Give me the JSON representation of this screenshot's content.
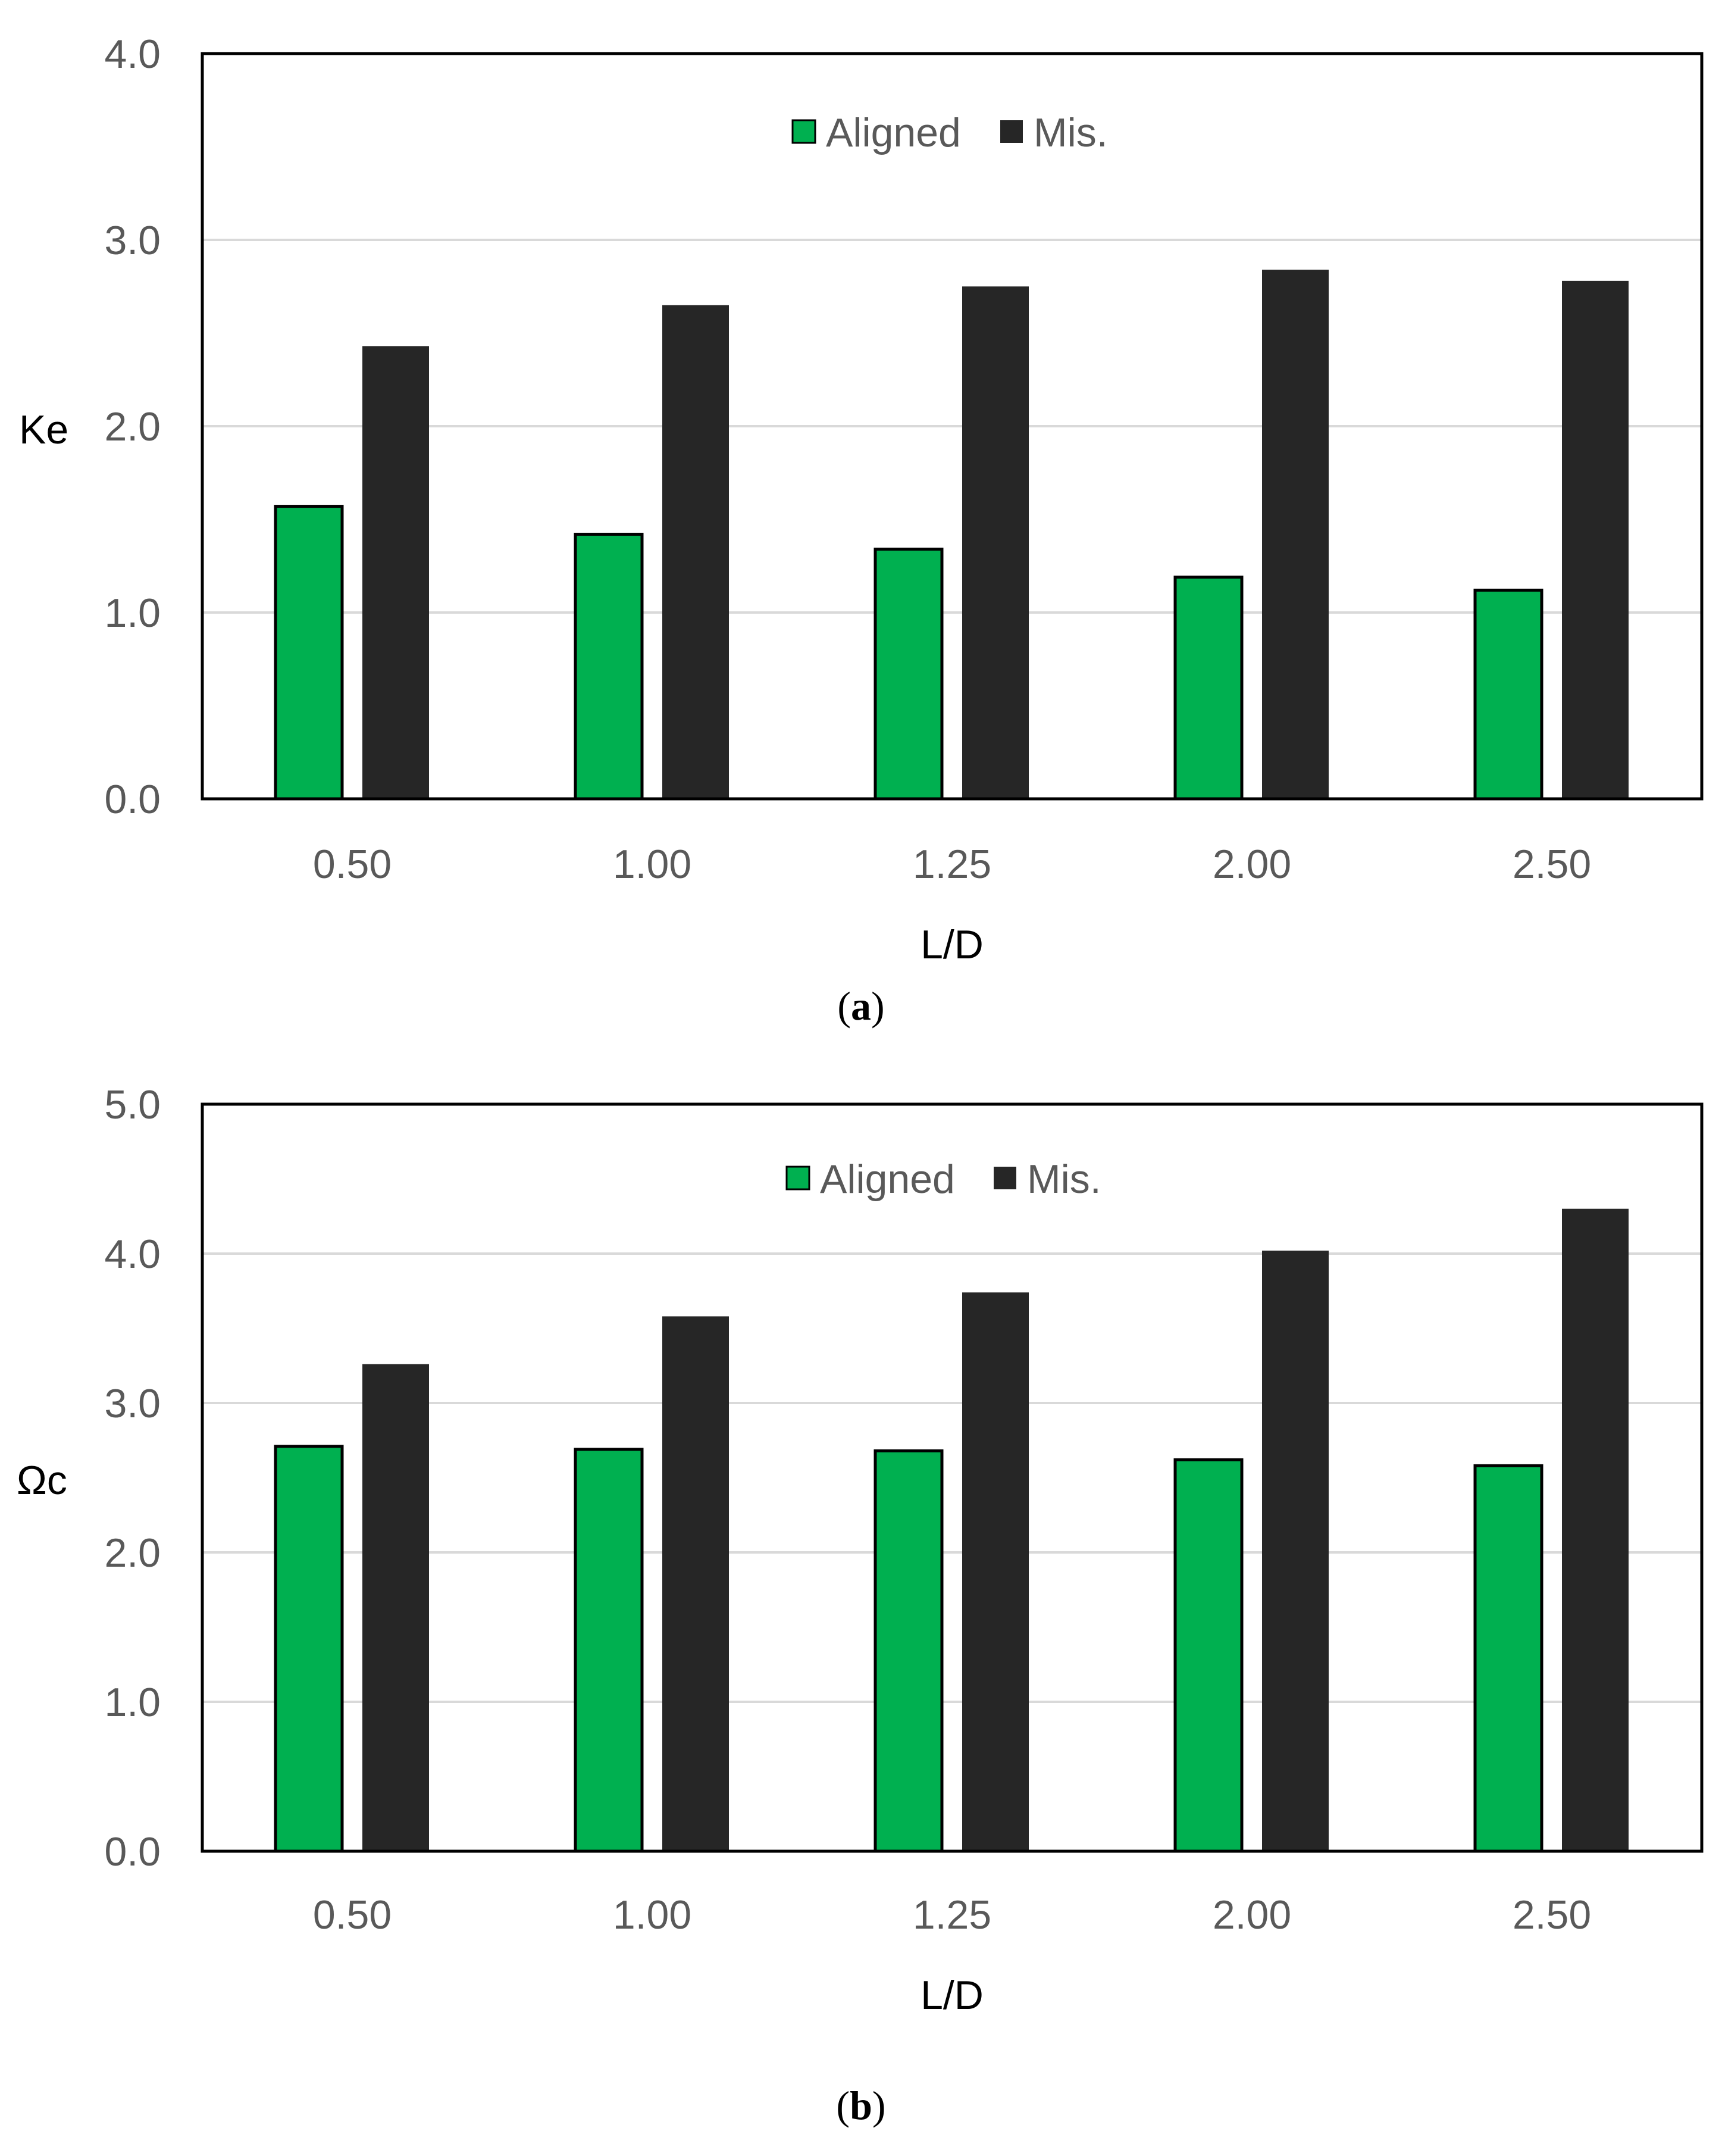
{
  "colors": {
    "aligned": "#00b050",
    "mis": "#262626",
    "grid": "#d9d9d9",
    "axis": "#000000"
  },
  "chart_data": [
    {
      "type": "bar",
      "panel": "a",
      "title": "",
      "xlabel": "L/D",
      "ylabel": "Ke",
      "categories": [
        "0.50",
        "1.00",
        "1.25",
        "2.00",
        "2.50"
      ],
      "series": [
        {
          "name": "Aligned",
          "values": [
            1.57,
            1.42,
            1.34,
            1.19,
            1.12
          ]
        },
        {
          "name": "Mis.",
          "values": [
            2.43,
            2.65,
            2.75,
            2.84,
            2.78
          ]
        }
      ],
      "ylim": [
        0,
        4
      ],
      "yticks": [
        "0.0",
        "1.0",
        "2.0",
        "3.0",
        "4.0"
      ],
      "grid": true,
      "legend": "top-center"
    },
    {
      "type": "bar",
      "panel": "b",
      "title": "",
      "xlabel": "L/D",
      "ylabel": "Ωc",
      "categories": [
        "0.50",
        "1.00",
        "1.25",
        "2.00",
        "2.50"
      ],
      "series": [
        {
          "name": "Aligned",
          "values": [
            2.71,
            2.69,
            2.68,
            2.62,
            2.58
          ]
        },
        {
          "name": "Mis.",
          "values": [
            3.26,
            3.58,
            3.74,
            4.02,
            4.3
          ]
        }
      ],
      "ylim": [
        0,
        5
      ],
      "yticks": [
        "0.0",
        "1.0",
        "2.0",
        "3.0",
        "4.0",
        "5.0"
      ],
      "grid": true,
      "legend": "top-center"
    }
  ]
}
